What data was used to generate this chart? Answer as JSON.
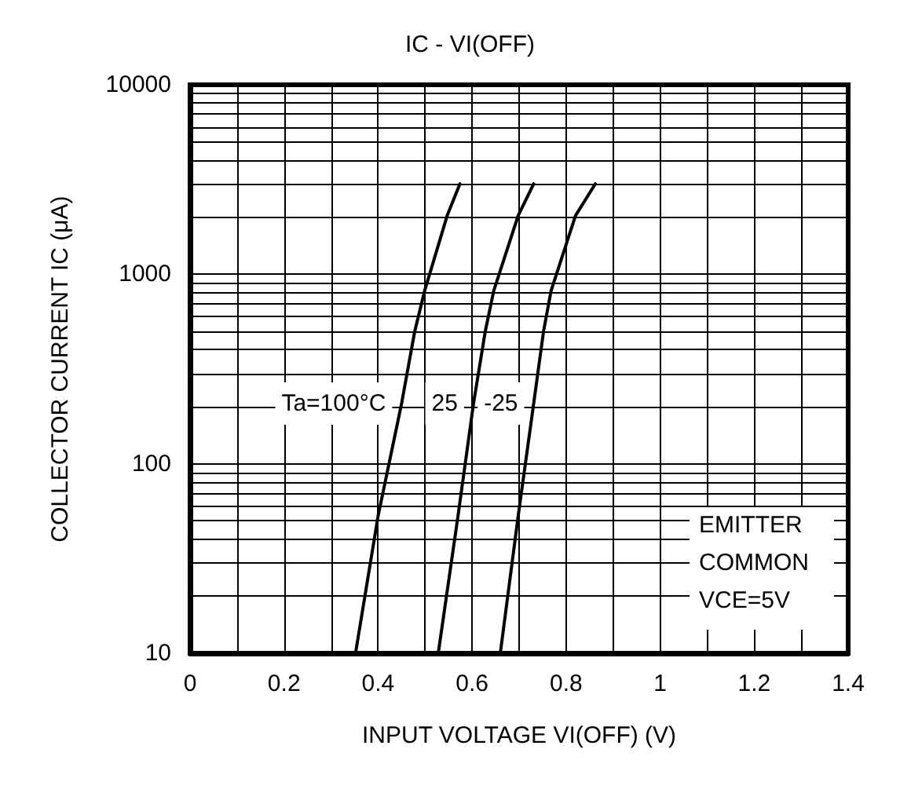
{
  "chart_data": {
    "type": "line",
    "title": "IC - VI(OFF)",
    "xlabel": "INPUT VOLTAGE VI(OFF) (V)",
    "ylabel": "COLLECTOR CURRENT IC (μA)",
    "log": "y",
    "grid": true,
    "legend": false,
    "marker": "none",
    "line_style": "solid",
    "xlim": [
      0,
      1.4
    ],
    "ylim": [
      10,
      10000
    ],
    "xticks": [
      0,
      {
        "value": 0.1,
        "label": null
      },
      0.2,
      {
        "value": 0.3,
        "label": null
      },
      0.4,
      {
        "value": 0.5,
        "label": null
      },
      0.6,
      {
        "value": 0.7,
        "label": null
      },
      0.8,
      {
        "value": 0.9,
        "label": null
      },
      1,
      {
        "value": 1.1,
        "label": null
      },
      1.2,
      {
        "value": 1.3,
        "label": null
      },
      1.4
    ],
    "yticks": [
      10,
      {
        "value": 20,
        "label": null
      },
      {
        "value": 30,
        "label": null
      },
      {
        "value": 40,
        "label": null
      },
      {
        "value": 50,
        "label": null
      },
      {
        "value": 60,
        "label": null
      },
      {
        "value": 70,
        "label": null
      },
      {
        "value": 80,
        "label": null
      },
      {
        "value": 90,
        "label": null
      },
      100,
      {
        "value": 200,
        "label": null
      },
      {
        "value": 300,
        "label": null
      },
      {
        "value": 400,
        "label": null
      },
      {
        "value": 500,
        "label": null
      },
      {
        "value": 600,
        "label": null
      },
      {
        "value": 700,
        "label": null
      },
      {
        "value": 800,
        "label": null
      },
      {
        "value": 900,
        "label": null
      },
      1000,
      {
        "value": 2000,
        "label": null
      },
      {
        "value": 3000,
        "label": null
      },
      {
        "value": 4000,
        "label": null
      },
      {
        "value": 5000,
        "label": null
      },
      {
        "value": 6000,
        "label": null
      },
      {
        "value": 7000,
        "label": null
      },
      {
        "value": 8000,
        "label": null
      },
      {
        "value": 9000,
        "label": null
      },
      10000
    ],
    "series": [
      {
        "name": "Ta=100°C",
        "color": "#000000",
        "x": [
          0.352,
          0.4,
          0.45,
          0.478,
          0.499,
          0.547,
          0.574
        ],
        "values": [
          10,
          53,
          208,
          500,
          818,
          2040,
          3000
        ]
      },
      {
        "name": "25",
        "color": "#000000",
        "x": [
          0.528,
          0.57,
          0.603,
          0.628,
          0.646,
          0.698,
          0.731
        ],
        "values": [
          10,
          53,
          208,
          500,
          818,
          2040,
          3000
        ]
      },
      {
        "name": "-25",
        "color": "#000000",
        "x": [
          0.66,
          0.698,
          0.731,
          0.752,
          0.768,
          0.82,
          0.862
        ],
        "values": [
          10,
          53,
          208,
          500,
          818,
          2040,
          3000
        ]
      }
    ],
    "annotations": [
      "EMITTER",
      "COMMON",
      "VCE=5V"
    ]
  }
}
